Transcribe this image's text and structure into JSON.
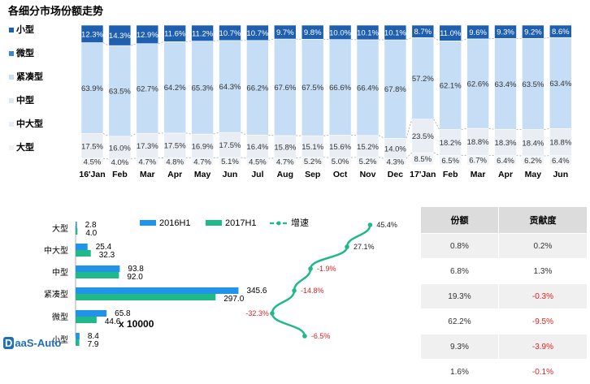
{
  "title": "各细分市场份额走势",
  "colors": {
    "small": "#1e5fb0",
    "micro": "#3b87d6",
    "compact": "#c5ddf5",
    "medium": "#dde8f4",
    "mid_large": "#e9eef5",
    "large": "#f0f3f7",
    "h1_2016": "#2193e8",
    "h1_2017": "#1fb98a",
    "growth": "#1fb98a",
    "negative": "#e02020"
  },
  "chart_data": [
    {
      "type": "bar",
      "stacked": "percent",
      "categories": [
        "16'Jan",
        "Feb",
        "Mar",
        "Apr",
        "May",
        "Jun",
        "Jul",
        "Aug",
        "Sep",
        "Oct",
        "Nov",
        "Dec",
        "17'Jan",
        "Feb",
        "Mar",
        "Apr",
        "May",
        "Jun"
      ],
      "series": [
        {
          "name": "大型",
          "values": [
            4.5,
            4.0,
            4.7,
            4.8,
            4.7,
            5.1,
            4.5,
            4.7,
            5.2,
            5.0,
            5.2,
            4.3,
            8.5,
            6.5,
            6.7,
            6.4,
            6.2,
            6.4
          ]
        },
        {
          "name": "中大型",
          "values": [
            17.5,
            16.0,
            17.3,
            17.5,
            16.9,
            17.5,
            16.4,
            15.8,
            15.1,
            15.6,
            15.2,
            14.0,
            23.5,
            18.2,
            18.8,
            18.3,
            18.4,
            18.8
          ]
        },
        {
          "name": "中型",
          "values": [
            0,
            0,
            0,
            0,
            0,
            0,
            0,
            0,
            0,
            0,
            0,
            0,
            0,
            0,
            0,
            0,
            0,
            0
          ]
        },
        {
          "name": "紧凑型",
          "values": [
            63.9,
            63.5,
            62.7,
            64.2,
            65.3,
            64.3,
            66.2,
            67.6,
            67.5,
            66.6,
            66.4,
            67.8,
            57.2,
            62.1,
            62.6,
            63.4,
            63.5,
            63.4
          ]
        },
        {
          "name": "微型",
          "values": [
            0,
            0,
            0,
            0,
            0,
            0,
            0,
            0,
            0,
            0,
            0,
            0,
            0,
            0,
            0,
            0,
            0,
            0
          ]
        },
        {
          "name": "小型",
          "values": [
            12.3,
            14.3,
            12.9,
            11.6,
            11.2,
            10.7,
            10.7,
            9.7,
            9.8,
            10.0,
            10.1,
            10.1,
            8.7,
            11.0,
            9.6,
            9.3,
            9.2,
            8.6
          ]
        }
      ],
      "legend": [
        "小型",
        "微型",
        "紧凑型",
        "中型",
        "中大型",
        "大型"
      ],
      "legend_position": "left",
      "ylim": [
        0,
        100
      ]
    },
    {
      "type": "bar",
      "orientation": "horizontal",
      "categories": [
        "大型",
        "中大型",
        "中型",
        "紧凑型",
        "微型",
        "小型"
      ],
      "series": [
        {
          "name": "2016H1",
          "values": [
            2.8,
            25.4,
            93.8,
            345.6,
            65.8,
            8.4
          ]
        },
        {
          "name": "2017H1",
          "values": [
            4.0,
            32.3,
            92.0,
            297.0,
            44.6,
            7.9
          ]
        }
      ],
      "unit_label": "x 10000",
      "legend_position": "top"
    },
    {
      "type": "line",
      "name": "增速",
      "categories": [
        "大型",
        "中大型",
        "中型",
        "紧凑型",
        "微型",
        "小型"
      ],
      "values": [
        45.4,
        27.1,
        -1.9,
        -14.8,
        -32.3,
        -6.5
      ],
      "value_labels": [
        "45.4%",
        "27.1%",
        "-1.9%",
        "-14.8%",
        "-32.3%",
        "-6.5%"
      ]
    },
    {
      "type": "table",
      "columns": [
        "份额",
        "贡献度"
      ],
      "rows": [
        [
          "0.8%",
          "0.2%"
        ],
        [
          "6.8%",
          "1.3%"
        ],
        [
          "19.3%",
          "-0.3%"
        ],
        [
          "62.2%",
          "-9.5%"
        ],
        [
          "9.3%",
          "-3.9%"
        ],
        [
          "1.6%",
          "-0.1%"
        ]
      ]
    }
  ],
  "logo_text": "DaaS-Auto"
}
